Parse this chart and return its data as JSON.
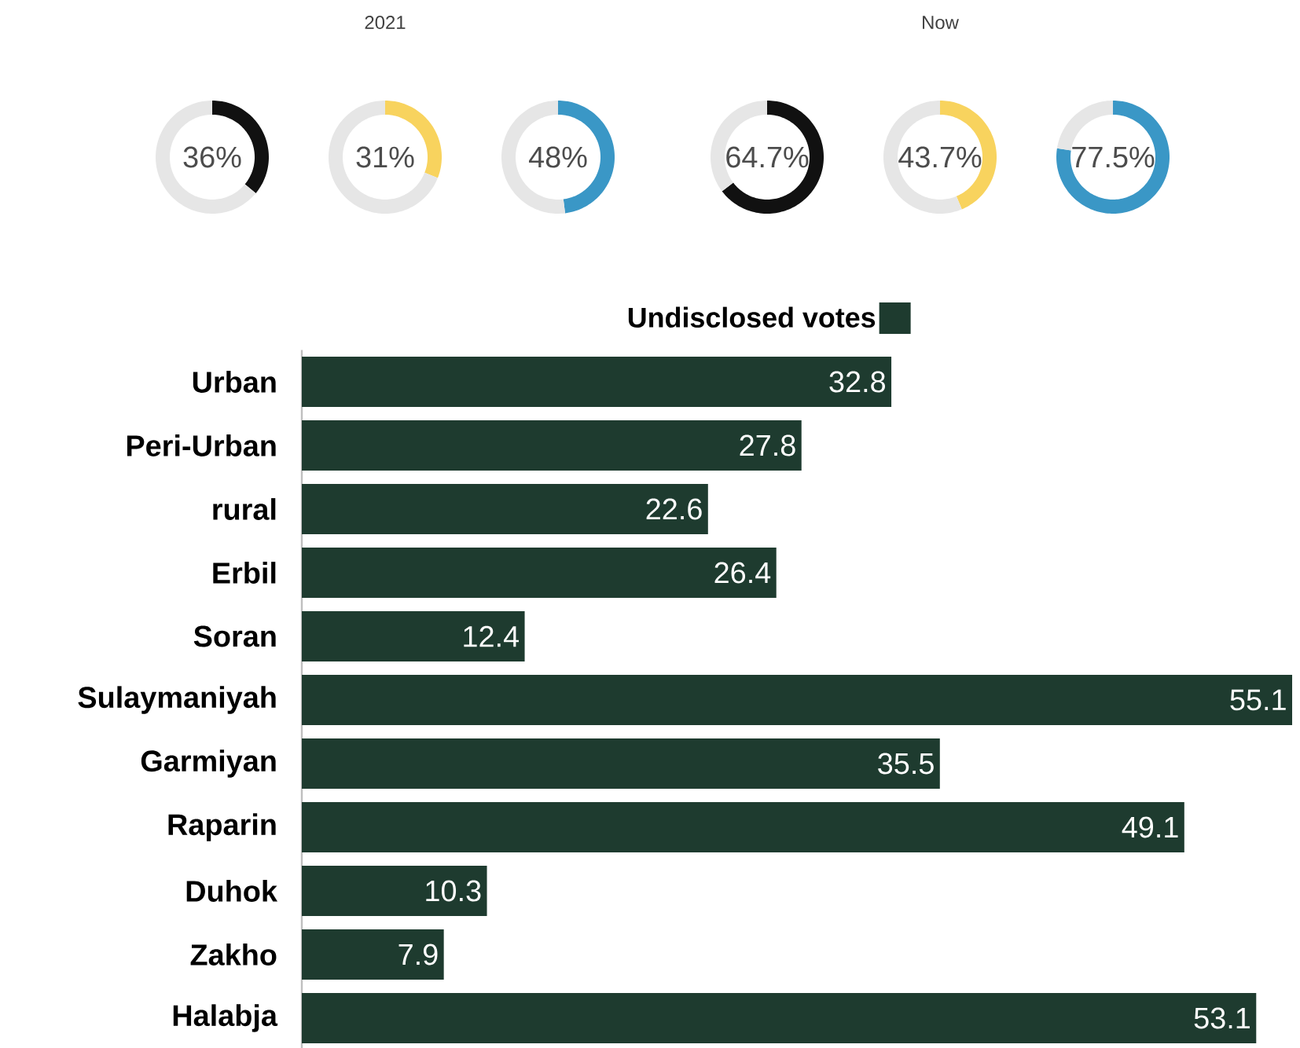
{
  "chart_data": [
    {
      "type": "donut",
      "categories": [
        null,
        null
      ],
      "values": [
        36,
        64
      ],
      "colors": [
        "#111111",
        "#e6e6e6"
      ],
      "annotations": [
        "36%"
      ]
    },
    {
      "type": "donut",
      "title": "2021",
      "categories": [
        null,
        null
      ],
      "values": [
        31,
        69
      ],
      "colors": [
        "#f8d35e",
        "#e6e6e6"
      ],
      "annotations": [
        "31%"
      ]
    },
    {
      "type": "donut",
      "categories": [
        null,
        null
      ],
      "values": [
        48,
        52
      ],
      "colors": [
        "#3a97c6",
        "#e6e6e6"
      ],
      "annotations": [
        "48%"
      ]
    },
    {
      "type": "donut",
      "categories": [
        null,
        null
      ],
      "values": [
        64.7,
        35.3
      ],
      "colors": [
        "#111111",
        "#e6e6e6"
      ],
      "annotations": [
        "64.7%"
      ]
    },
    {
      "type": "donut",
      "title": "Now",
      "categories": [
        null,
        null
      ],
      "values": [
        43.7,
        56.3
      ],
      "colors": [
        "#f8d35e",
        "#e6e6e6"
      ],
      "annotations": [
        "43.7%"
      ]
    },
    {
      "type": "donut",
      "categories": [
        null,
        null
      ],
      "values": [
        77.5,
        22.5
      ],
      "colors": [
        "#3a97c6",
        "#e6e6e6"
      ],
      "annotations": [
        "77.5%"
      ]
    },
    {
      "type": "bar",
      "orientation": "horizontal",
      "data_labels": true,
      "legend": "top",
      "categories": [
        "Urban",
        "Peri-Urban",
        "rural",
        "Erbil",
        "Soran",
        "Sulaymaniyah",
        "Garmiyan",
        "Raparin",
        "Duhok",
        "Zakho",
        "Halabja"
      ],
      "series": [
        {
          "name": "Undisclosed votes",
          "color": "#1e3b2f",
          "values": [
            32.8,
            27.8,
            22.6,
            26.4,
            12.4,
            55.1,
            35.5,
            49.1,
            10.3,
            7.9,
            53.1
          ]
        }
      ]
    }
  ]
}
